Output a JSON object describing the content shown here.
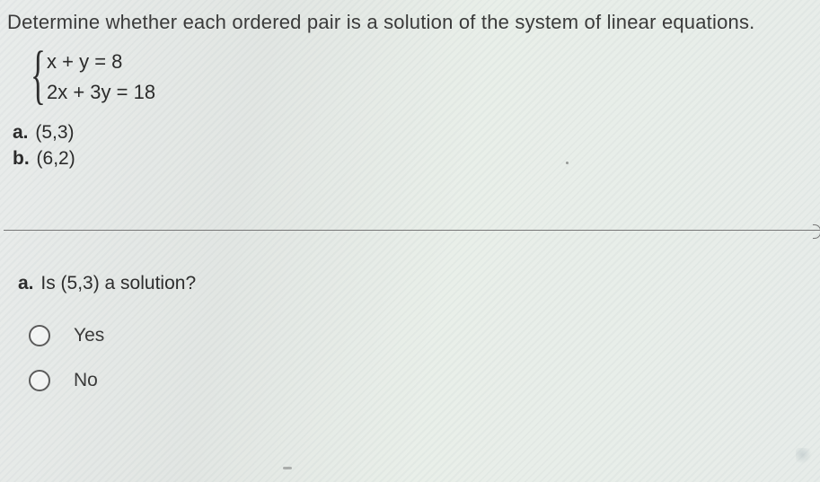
{
  "prompt": "Determine whether each ordered pair is a solution of the system of linear equations.",
  "system": {
    "eq1_lhs": "x + y",
    "eq1_rhs": "8",
    "eq2_lhs": "2x + 3y",
    "eq2_rhs": "18"
  },
  "pairs": {
    "a_label": "a.",
    "a_value": "(5,3)",
    "b_label": "b.",
    "b_value": "(6,2)"
  },
  "question": {
    "label": "a.",
    "text": "Is (5,3) a solution?"
  },
  "options": {
    "yes": "Yes",
    "no": "No"
  },
  "colors": {
    "text": "#2a2a2a",
    "rule": "#777777",
    "radio_border": "#5b5b5b"
  }
}
